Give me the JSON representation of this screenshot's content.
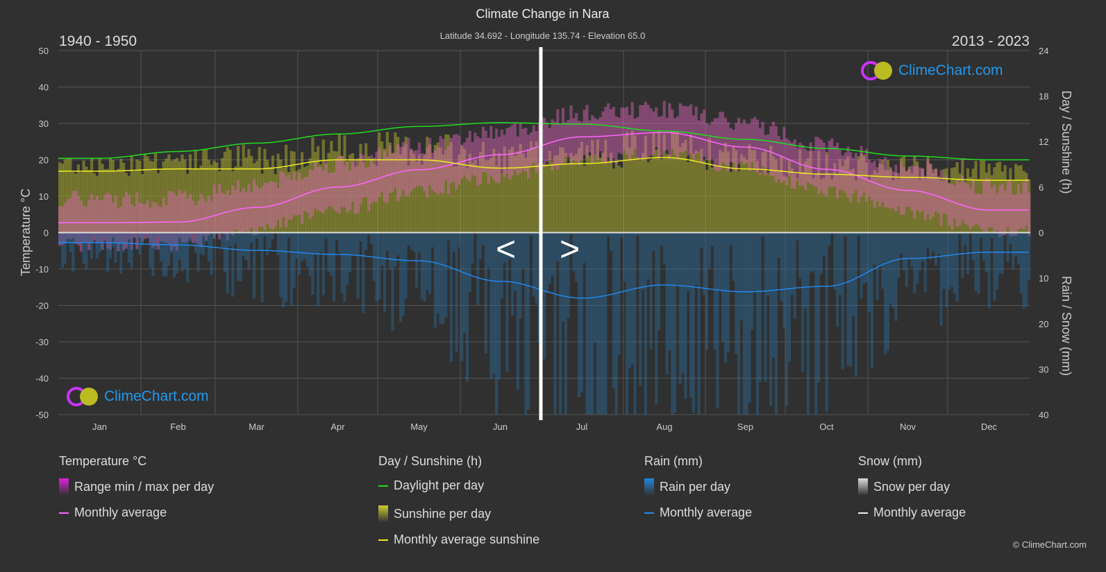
{
  "header": {
    "title": "Climate Change in Nara",
    "subtitle": "Latitude 34.692 - Longitude 135.74 - Elevation 65.0",
    "period_left": "1940 - 1950",
    "period_right": "2013 - 2023"
  },
  "logo_text": "ClimeChart.com",
  "copyright": "© ClimeChart.com",
  "nav": {
    "prev": "<",
    "next": ">"
  },
  "chart_data": {
    "type": "line",
    "title": "Climate Change in Nara",
    "categories": [
      "Jan",
      "Feb",
      "Mar",
      "Apr",
      "May",
      "Jun",
      "Jul",
      "Aug",
      "Sep",
      "Oct",
      "Nov",
      "Dec"
    ],
    "y_left": {
      "label": "Temperature °C",
      "range": [
        -50,
        50
      ],
      "ticks": [
        "50",
        "40",
        "30",
        "20",
        "10",
        "0",
        "-10",
        "-20",
        "-30",
        "-40",
        "-50"
      ]
    },
    "y_right_top": {
      "label": "Day / Sunshine (h)",
      "range": [
        0,
        24
      ],
      "ticks": [
        "24",
        "18",
        "12",
        "6",
        "0"
      ]
    },
    "y_right_bottom": {
      "label": "Rain / Snow (mm)",
      "range": [
        0,
        40
      ],
      "ticks": [
        "0",
        "10",
        "20",
        "30",
        "40"
      ]
    },
    "grid": true,
    "series": [
      {
        "name": "Monthly average",
        "group": "temperature",
        "color": "#ff66ff",
        "unit": "°C",
        "values": [
          2.7,
          2.9,
          6.9,
          12.5,
          17.3,
          21.4,
          26.3,
          27.5,
          23.5,
          17.4,
          11.6,
          6.2
        ]
      },
      {
        "name": "Daylight per day",
        "group": "day",
        "color": "#22dd22",
        "unit": "h",
        "values": [
          9.8,
          10.7,
          11.8,
          13.0,
          14.0,
          14.5,
          14.3,
          13.4,
          12.3,
          11.1,
          10.1,
          9.6
        ]
      },
      {
        "name": "Monthly average sunshine",
        "group": "day",
        "color": "#eeee22",
        "unit": "h",
        "values": [
          8.1,
          8.4,
          8.4,
          9.6,
          9.6,
          8.5,
          9.1,
          9.9,
          8.4,
          7.7,
          7.3,
          6.9
        ]
      },
      {
        "name": "Monthly average",
        "group": "rain",
        "color": "#2288ee",
        "unit": "mm",
        "values": [
          2.2,
          2.7,
          3.9,
          4.8,
          6.2,
          10.7,
          14.4,
          11.5,
          13.0,
          11.8,
          5.7,
          4.3
        ]
      }
    ],
    "legend_position": "bottom"
  },
  "legend": {
    "groups": [
      {
        "title": "Temperature °C",
        "items": [
          {
            "label": "Range min / max per day",
            "kind": "swatch",
            "color": "#dd22dd"
          },
          {
            "label": "Monthly average",
            "kind": "line",
            "color": "#ff66ff"
          }
        ]
      },
      {
        "title": "Day / Sunshine (h)",
        "items": [
          {
            "label": "Daylight per day",
            "kind": "line",
            "color": "#22dd22"
          },
          {
            "label": "Sunshine per day",
            "kind": "swatch",
            "color": "#cccc33"
          },
          {
            "label": "Monthly average sunshine",
            "kind": "line",
            "color": "#eeee22"
          }
        ]
      },
      {
        "title": "Rain (mm)",
        "items": [
          {
            "label": "Rain per day",
            "kind": "swatch",
            "color": "#2288dd"
          },
          {
            "label": "Monthly average",
            "kind": "line",
            "color": "#2288ee"
          }
        ]
      },
      {
        "title": "Snow (mm)",
        "items": [
          {
            "label": "Snow per day",
            "kind": "swatch",
            "color": "#dddddd"
          },
          {
            "label": "Monthly average",
            "kind": "line",
            "color": "#eeeeee"
          }
        ]
      }
    ]
  }
}
